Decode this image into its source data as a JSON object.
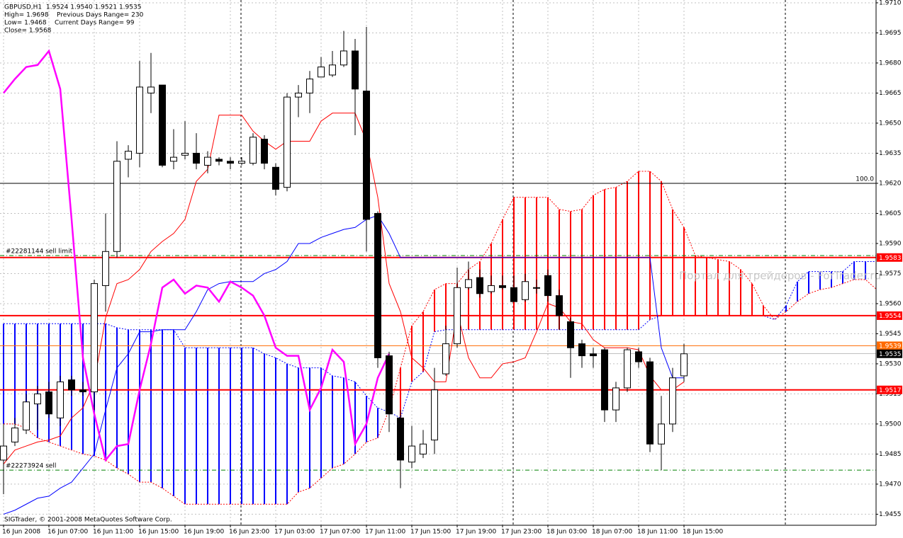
{
  "header": {
    "lines": [
      "GBPUSD,H1  1.9524 1.9540 1.9521 1.9535",
      "High= 1.9698    Previous Days Range= 230",
      "Low= 1.9468    Current Days Range= 99",
      "Close= 1.9568"
    ]
  },
  "copyright": "SIGTrader, © 2001-2008 MetaQuotes Software Corp.",
  "watermark": "Портал для трейдеров - ForTrader.ru",
  "chart_data": {
    "type": "candlestick",
    "categories": [
      "16 Jun 2008",
      null,
      null,
      null,
      "16 Jun 07:00",
      null,
      null,
      null,
      "16 Jun 11:00",
      null,
      null,
      null,
      "16 Jun 15:00",
      null,
      null,
      null,
      "16 Jun 19:00",
      null,
      null,
      null,
      "16 Jun 23:00",
      null,
      null,
      null,
      "17 Jun 03:00",
      null,
      null,
      null,
      "17 Jun 07:00",
      null,
      null,
      null,
      "17 Jun 11:00",
      null,
      null,
      null,
      "17 Jun 15:00",
      null,
      null,
      null,
      "17 Jun 19:00",
      null,
      null,
      null,
      "17 Jun 23:00",
      null,
      null,
      null,
      "18 Jun 03:00",
      null,
      null,
      null,
      "18 Jun 07:00",
      null,
      null,
      null,
      "18 Jun 11:00",
      null,
      null,
      null,
      "18 Jun 15:00"
    ],
    "open": [
      1.9482,
      1.9491,
      1.9497,
      1.951,
      1.9516,
      1.9503,
      1.9522,
      1.9517,
      1.9516,
      1.9569,
      1.9586,
      1.9632,
      1.9635,
      1.9665,
      1.9669,
      1.9631,
      1.9634,
      1.9635,
      1.9629,
      1.9632,
      1.9631,
      1.963,
      1.963,
      1.9642,
      1.9628,
      1.9618,
      1.9663,
      1.9665,
      1.9673,
      1.9674,
      1.9679,
      1.9686,
      1.9666,
      1.9605,
      1.9534,
      1.9503,
      1.9481,
      1.9485,
      1.9492,
      1.9525,
      1.954,
      1.9568,
      1.9573,
      1.9566,
      1.9569,
      1.9568,
      1.9562,
      1.9568,
      1.9574,
      1.9564,
      1.9551,
      1.954,
      1.9535,
      1.9537,
      1.9507,
      1.9518,
      1.9536,
      1.9531,
      1.949,
      1.95,
      1.9524
    ],
    "high": [
      1.95,
      1.9503,
      1.9515,
      1.9519,
      1.9521,
      1.9524,
      1.9524,
      1.9521,
      1.9572,
      1.9605,
      1.9641,
      1.9639,
      1.9681,
      1.9685,
      1.9669,
      1.9647,
      1.9651,
      1.9645,
      1.9636,
      1.9633,
      1.9633,
      1.9633,
      1.9645,
      1.9644,
      1.963,
      1.9665,
      1.9669,
      1.9676,
      1.9683,
      1.9686,
      1.9696,
      1.9692,
      1.9698,
      1.9606,
      1.9536,
      1.9507,
      1.9499,
      1.9497,
      1.9528,
      1.9549,
      1.9578,
      1.9581,
      1.9577,
      1.9574,
      1.9574,
      1.9574,
      1.9575,
      1.9572,
      1.9577,
      1.9567,
      1.9553,
      1.9542,
      1.9538,
      1.9538,
      1.9521,
      1.9538,
      1.9538,
      1.9533,
      1.9514,
      1.9528,
      1.954
    ],
    "low": [
      1.9465,
      1.9489,
      1.9495,
      1.9497,
      1.9503,
      1.9499,
      1.9514,
      1.9514,
      1.9507,
      1.9556,
      1.9583,
      1.9623,
      1.9628,
      1.9655,
      1.9628,
      1.9627,
      1.9632,
      1.9627,
      1.9625,
      1.9629,
      1.9627,
      1.9629,
      1.9629,
      1.9627,
      1.9614,
      1.9616,
      1.9653,
      1.9655,
      1.9673,
      1.9673,
      1.9678,
      1.9644,
      1.9586,
      1.9528,
      1.9496,
      1.9468,
      1.9478,
      1.9483,
      1.9485,
      1.9524,
      1.9538,
      1.9567,
      1.9563,
      1.9565,
      1.9567,
      1.9561,
      1.9561,
      1.9565,
      1.9561,
      1.9547,
      1.9523,
      1.9528,
      1.9528,
      1.9501,
      1.9501,
      1.9516,
      1.9528,
      1.9486,
      1.9477,
      1.9496,
      1.9521
    ],
    "close": [
      1.9489,
      1.9498,
      1.9511,
      1.9515,
      1.9505,
      1.9521,
      1.9517,
      1.9516,
      1.957,
      1.9586,
      1.9631,
      1.9636,
      1.9668,
      1.9668,
      1.9629,
      1.9633,
      1.9635,
      1.963,
      1.9633,
      1.9631,
      1.963,
      1.9631,
      1.9643,
      1.963,
      1.9617,
      1.9663,
      1.9665,
      1.9672,
      1.9678,
      1.9679,
      1.9686,
      1.9667,
      1.9602,
      1.9533,
      1.9505,
      1.9482,
      1.9489,
      1.949,
      1.9517,
      1.954,
      1.9568,
      1.9572,
      1.9565,
      1.9569,
      1.9568,
      1.9561,
      1.9571,
      1.9568,
      1.9564,
      1.9554,
      1.9538,
      1.9534,
      1.9534,
      1.9507,
      1.9518,
      1.9537,
      1.9531,
      1.949,
      1.95,
      1.9523,
      1.9535
    ],
    "series": [
      {
        "color": "#ff0000",
        "style": "solid",
        "values": [
          1.948,
          1.9487,
          1.9489,
          1.9491,
          1.9492,
          1.9494,
          1.9503,
          1.9508,
          1.9521,
          1.9553,
          1.957,
          1.9572,
          1.9577,
          1.9586,
          1.9591,
          1.9595,
          1.9602,
          1.9621,
          1.9627,
          1.9654,
          1.9654,
          1.9654,
          1.9646,
          1.9641,
          1.9637,
          1.9641,
          1.9641,
          1.9641,
          1.9651,
          1.9655,
          1.9655,
          1.9655,
          1.9641,
          1.9613,
          1.957,
          1.9556,
          1.9533,
          1.9528,
          1.9521,
          1.9521,
          1.9556,
          1.9533,
          1.9523,
          1.9523,
          1.953,
          1.9531,
          1.9533,
          1.9546,
          1.956,
          1.9558,
          1.9551,
          1.955,
          1.9542,
          1.9538,
          1.9538,
          1.9538,
          1.9537,
          1.9524,
          1.9517,
          1.9517,
          1.9521
        ]
      },
      {
        "color": "#0000ff",
        "style": "solid",
        "values": [
          1.9455,
          1.9457,
          1.946,
          1.9463,
          1.9464,
          1.9468,
          1.9471,
          1.9478,
          1.9485,
          1.9507,
          1.9528,
          1.9535,
          1.9546,
          1.9546,
          1.9547,
          1.9547,
          1.9547,
          1.9556,
          1.9567,
          1.957,
          1.9571,
          1.9571,
          1.9571,
          1.9575,
          1.9577,
          1.9581,
          1.959,
          1.959,
          1.9593,
          1.9595,
          1.9597,
          1.9598,
          1.9602,
          1.9604,
          1.9595,
          1.9583,
          1.9583,
          1.9583,
          1.9583,
          1.9583,
          1.9583,
          1.9583,
          1.9583,
          1.9583,
          1.9583,
          1.9583,
          1.9583,
          1.9583,
          1.9583,
          1.9583,
          1.9583,
          1.9583,
          1.9583,
          1.9583,
          1.9583,
          1.9583,
          1.9583,
          1.9583,
          1.9538,
          1.9523,
          1.9523
        ]
      },
      {
        "color": "#ff00ff",
        "style": "bold",
        "values": [
          1.9665,
          1.9672,
          1.9678,
          1.9679,
          1.9686,
          1.9667,
          1.9602,
          1.9533,
          1.9505,
          1.9482,
          1.9489,
          1.949,
          1.9517,
          1.954,
          1.9568,
          1.9572,
          1.9565,
          1.9569,
          1.9568,
          1.9561,
          1.9571,
          1.9568,
          1.9564,
          1.9554,
          1.9538,
          1.9534,
          1.9534,
          1.9507,
          1.9518,
          1.9537,
          1.9531,
          1.949,
          1.95,
          1.9523,
          1.9535,
          null,
          null,
          null,
          null,
          null,
          null,
          null,
          null,
          null,
          null,
          null,
          null,
          null,
          null,
          null,
          null,
          null,
          null,
          null,
          null,
          null,
          null,
          null,
          null,
          null,
          null
        ]
      }
    ],
    "cloud": {
      "span_a_color": "#ff0000",
      "span_b_color": "#0000ff",
      "span_a": [
        1.95,
        1.95,
        1.9498,
        1.9493,
        1.9491,
        1.9489,
        1.9487,
        1.9485,
        1.9484,
        1.9482,
        1.9478,
        1.9475,
        1.9471,
        1.9471,
        1.9468,
        1.9464,
        1.946,
        1.946,
        1.946,
        1.946,
        1.946,
        1.946,
        1.946,
        1.946,
        1.946,
        1.946,
        1.9466,
        1.9468,
        1.9473,
        1.9478,
        1.948,
        1.9485,
        1.9491,
        1.9493,
        1.9507,
        1.9528,
        1.9549,
        1.9556,
        1.9567,
        1.957,
        1.957,
        1.9577,
        1.9581,
        1.959,
        1.9602,
        1.9613,
        1.9613,
        1.9613,
        1.9613,
        1.9607,
        1.9606,
        1.9607,
        1.9614,
        1.9617,
        1.9618,
        1.9621,
        1.9626,
        1.9626,
        1.9621,
        1.9607,
        1.9598,
        1.9584,
        1.9583,
        1.9582,
        1.9581,
        1.9577,
        1.957,
        1.9559,
        1.9552,
        1.9556,
        1.9561,
        1.9565,
        1.9567,
        1.9568,
        1.957,
        1.9572,
        1.9572,
        1.9567
      ],
      "span_b": [
        1.955,
        1.955,
        1.955,
        1.955,
        1.955,
        1.955,
        1.955,
        1.955,
        1.955,
        1.955,
        1.9548,
        1.9547,
        1.9547,
        1.9547,
        1.9547,
        1.9547,
        1.9538,
        1.9538,
        1.9538,
        1.9538,
        1.9538,
        1.9538,
        1.9538,
        1.9535,
        1.9533,
        1.953,
        1.9528,
        1.9528,
        1.9528,
        1.9524,
        1.9523,
        1.9521,
        1.9514,
        1.9508,
        1.9506,
        1.9503,
        1.9521,
        1.9526,
        1.9546,
        1.9547,
        1.9547,
        1.9547,
        1.9547,
        1.9547,
        1.9547,
        1.9547,
        1.9547,
        1.9547,
        1.9547,
        1.9547,
        1.9547,
        1.9547,
        1.9547,
        1.9547,
        1.9547,
        1.9547,
        1.9547,
        1.9552,
        1.9554,
        1.9554,
        1.9554,
        1.9554,
        1.9554,
        1.9554,
        1.9554,
        1.9554,
        1.9554,
        1.9554,
        1.9552,
        1.9559,
        1.9571,
        1.9576,
        1.9576,
        1.9576,
        1.9576,
        1.9581,
        1.9581,
        1.9581
      ]
    },
    "levels": [
      {
        "value": 1.9583,
        "color": "#ff0000",
        "style": "thick"
      },
      {
        "value": 1.9554,
        "color": "#ff0000",
        "style": "thick"
      },
      {
        "value": 1.9539,
        "color": "#ff6a00",
        "style": "thin"
      },
      {
        "value": 1.9535,
        "color": "#000000",
        "style": "faint"
      },
      {
        "value": 1.9517,
        "color": "#ff0000",
        "style": "thick"
      }
    ],
    "orders": [
      {
        "label": "#22281144 sell limit",
        "price": 1.9584
      },
      {
        "label": "#22273924 sell",
        "price": 1.9477
      }
    ],
    "fibo": {
      "label": "100.0",
      "price": 1.962
    },
    "day_separators": [
      21,
      45,
      69
    ],
    "ylim": [
      1.94495,
      1.97114
    ],
    "yticks": [
      {
        "value": 1.971,
        "label": "1.9710"
      },
      {
        "value": 1.9695,
        "label": "1.9695"
      },
      {
        "value": 1.968,
        "label": "1.9680"
      },
      {
        "value": 1.9665,
        "label": "1.9665"
      },
      {
        "value": 1.965,
        "label": "1.9650"
      },
      {
        "value": 1.9635,
        "label": "1.9635"
      },
      {
        "value": 1.962,
        "label": "1.9620"
      },
      {
        "value": 1.9605,
        "label": "1.9605"
      },
      {
        "value": 1.959,
        "label": "1.9590"
      },
      {
        "value": 1.9575,
        "label": "1.9575"
      },
      {
        "value": 1.956,
        "label": "1.9560"
      },
      {
        "value": 1.9545,
        "label": "1.9545"
      },
      {
        "value": 1.953,
        "label": "1.9530"
      },
      {
        "value": 1.9515,
        "label": "1.9515"
      },
      {
        "value": 1.95,
        "label": "1.9500"
      },
      {
        "value": 1.9485,
        "label": "1.9485"
      },
      {
        "value": 1.947,
        "label": "1.9470"
      },
      {
        "value": 1.9455,
        "label": "1.9455"
      }
    ],
    "grid": true
  }
}
